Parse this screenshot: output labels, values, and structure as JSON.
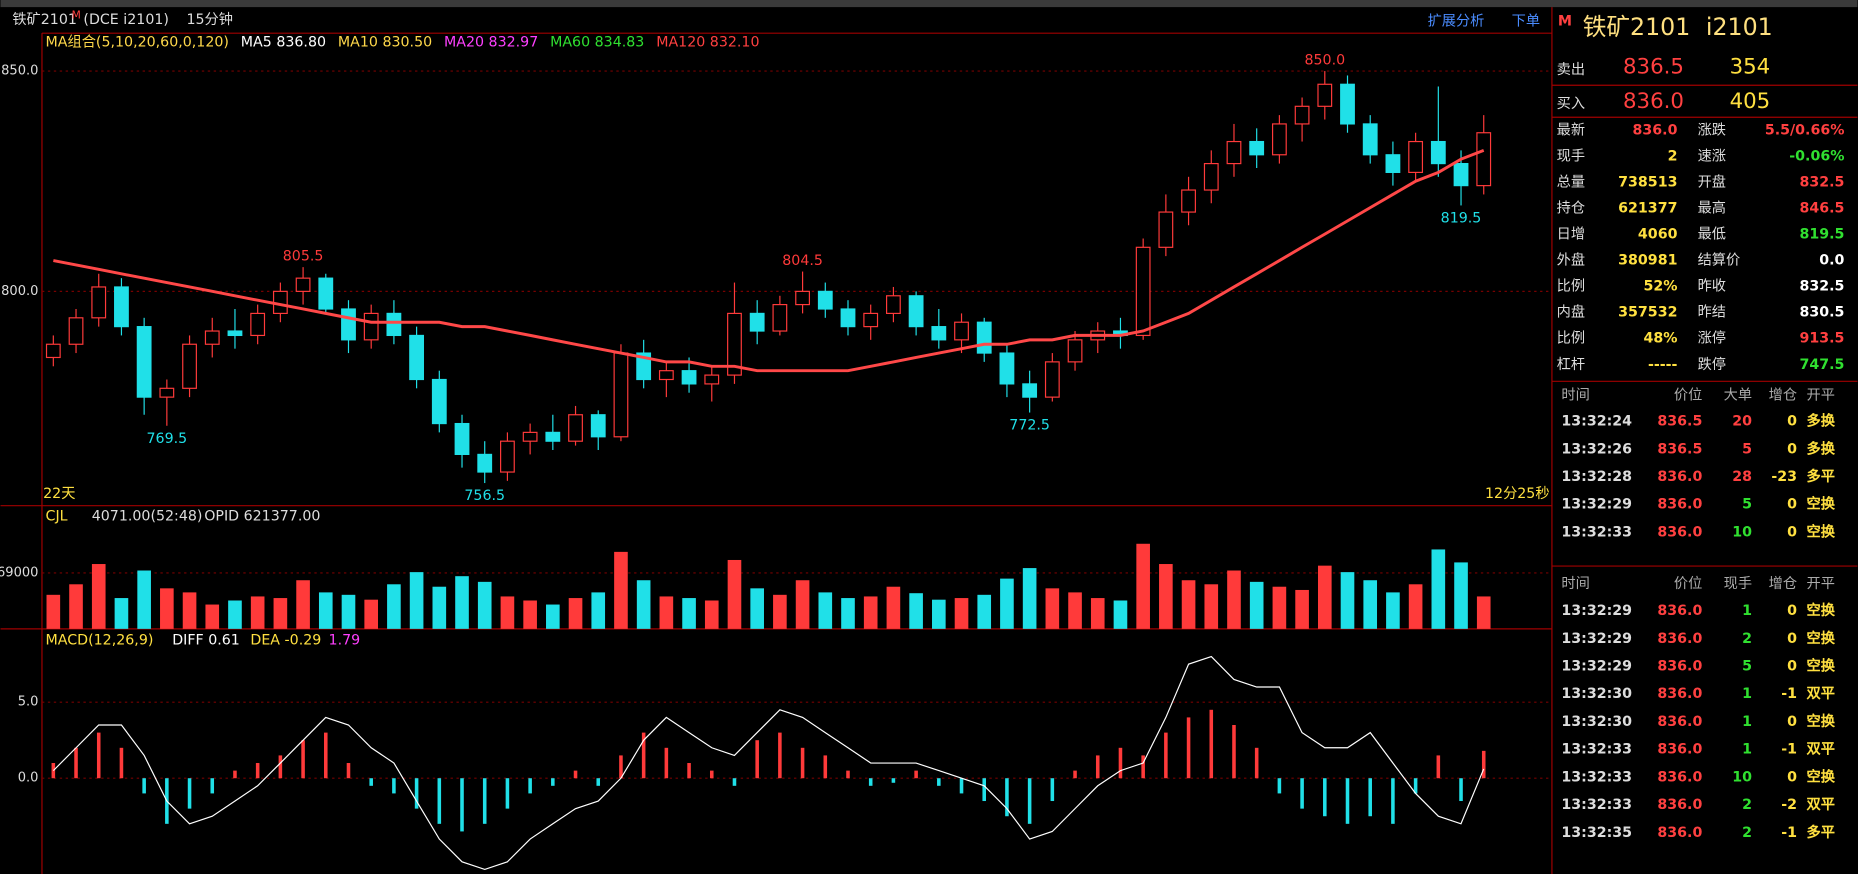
{
  "header": {
    "symbol": "铁矿2101",
    "flag": "M",
    "code": "(DCE i2101)",
    "period": "15分钟",
    "tools": [
      "扩展分析",
      "下单"
    ]
  },
  "chart_data": [
    {
      "type": "candlestick",
      "legend": [
        "MA组合(5,10,20,60,0,120)",
        "MA5 836.80",
        "MA10 830.50",
        "MA20 832.97",
        "MA60 834.83",
        "MA120 832.10"
      ],
      "legend_colors": [
        "#ffd84a",
        "#ffffff",
        "#ffd84a",
        "#ff40ff",
        "#30e030",
        "#ff4040"
      ],
      "ylim": [
        751.9,
        858.6
      ],
      "yticks": [
        {
          "value": 850,
          "label": "850.0"
        },
        {
          "value": 800,
          "label": "800.0"
        }
      ],
      "up_color": "#ff3a3a",
      "down_color": "#20e0e8",
      "candles": [
        [
          785,
          790,
          783,
          788
        ],
        [
          788,
          796,
          786,
          794
        ],
        [
          794,
          804,
          792,
          801
        ],
        [
          801,
          803,
          790,
          792
        ],
        [
          792,
          794,
          772,
          776
        ],
        [
          776,
          780,
          769.5,
          778
        ],
        [
          778,
          790,
          776,
          788
        ],
        [
          788,
          794,
          785,
          791
        ],
        [
          791,
          796,
          787,
          790
        ],
        [
          790,
          797,
          788,
          795
        ],
        [
          795,
          802,
          793,
          800
        ],
        [
          800,
          805.5,
          797,
          803
        ],
        [
          803,
          804,
          795,
          796
        ],
        [
          796,
          798,
          786,
          789
        ],
        [
          789,
          797,
          787,
          795
        ],
        [
          795,
          798,
          788,
          790
        ],
        [
          790,
          792,
          778,
          780
        ],
        [
          780,
          782,
          768,
          770
        ],
        [
          770,
          772,
          760,
          763
        ],
        [
          763,
          766,
          756.5,
          759
        ],
        [
          759,
          768,
          757,
          766
        ],
        [
          766,
          770,
          763,
          768
        ],
        [
          768,
          772,
          764,
          766
        ],
        [
          766,
          774,
          765,
          772
        ],
        [
          772,
          773,
          764,
          767
        ],
        [
          767,
          788,
          766,
          786
        ],
        [
          786,
          789,
          778,
          780
        ],
        [
          780,
          784,
          776,
          782
        ],
        [
          782,
          785,
          777,
          779
        ],
        [
          779,
          783,
          775,
          781
        ],
        [
          781,
          802,
          779,
          795
        ],
        [
          795,
          798,
          788,
          791
        ],
        [
          791,
          799,
          790,
          797
        ],
        [
          797,
          804.5,
          795,
          800
        ],
        [
          800,
          802,
          794,
          796
        ],
        [
          796,
          798,
          790,
          792
        ],
        [
          792,
          797,
          789,
          795
        ],
        [
          795,
          801,
          793,
          799
        ],
        [
          799,
          800,
          790,
          792
        ],
        [
          792,
          796,
          787,
          789
        ],
        [
          789,
          795,
          786,
          793
        ],
        [
          793,
          794,
          784,
          786
        ],
        [
          786,
          788,
          776,
          779
        ],
        [
          779,
          782,
          772.5,
          776
        ],
        [
          776,
          786,
          775,
          784
        ],
        [
          784,
          791,
          782,
          789
        ],
        [
          789,
          793,
          786,
          791
        ],
        [
          791,
          794,
          787,
          790
        ],
        [
          790,
          812,
          789,
          810
        ],
        [
          810,
          822,
          808,
          818
        ],
        [
          818,
          826,
          815,
          823
        ],
        [
          823,
          832,
          820,
          829
        ],
        [
          829,
          838,
          826,
          834
        ],
        [
          834,
          837,
          828,
          831
        ],
        [
          831,
          840,
          829,
          838
        ],
        [
          838,
          844,
          834,
          842
        ],
        [
          842,
          850,
          839,
          847
        ],
        [
          847,
          849,
          836,
          838
        ],
        [
          838,
          840,
          829,
          831
        ],
        [
          831,
          834,
          824,
          827
        ],
        [
          827,
          836,
          825,
          834
        ],
        [
          834,
          846.5,
          826,
          829
        ],
        [
          829,
          832,
          819.5,
          824
        ],
        [
          824,
          840,
          822,
          836
        ]
      ],
      "ma120": [
        807,
        806,
        805,
        804,
        803,
        802,
        801,
        800,
        799,
        798,
        797,
        796,
        795,
        794,
        793,
        793,
        793,
        793,
        792,
        792,
        791,
        790,
        789,
        788,
        787,
        786,
        785,
        784,
        784,
        783,
        783,
        782,
        782,
        782,
        782,
        782,
        783,
        784,
        785,
        786,
        787,
        788,
        788,
        789,
        789,
        790,
        790,
        790,
        791,
        793,
        795,
        798,
        801,
        804,
        807,
        810,
        813,
        816,
        819,
        822,
        825,
        827,
        830,
        832
      ],
      "ma120_color": "#ff4848",
      "annotations": [
        {
          "value": 850,
          "label": "850.0"
        },
        {
          "value": 805.5,
          "label": "805.5"
        },
        {
          "value": 804.5,
          "label": "804.5"
        },
        {
          "value": 769.5,
          "label": "769.5"
        },
        {
          "value": 756.5,
          "label": "756.5"
        },
        {
          "value": 772.5,
          "label": "772.5"
        },
        {
          "value": 819.5,
          "label": "819.5"
        }
      ],
      "footer_left": "22天",
      "footer_right": "12分25秒"
    },
    {
      "type": "bar",
      "title": "CJL",
      "stats": [
        "4071.00(52:48)",
        "OPID 621377.00"
      ],
      "ylim": [
        0,
        133000
      ],
      "yticks": [
        69000
      ],
      "values": [
        42000,
        55000,
        80000,
        38000,
        72000,
        50000,
        45000,
        30000,
        35000,
        40000,
        38000,
        60000,
        45000,
        42000,
        36000,
        55000,
        70000,
        52000,
        65000,
        58000,
        40000,
        35000,
        30000,
        38000,
        45000,
        95000,
        60000,
        40000,
        38000,
        35000,
        85000,
        50000,
        42000,
        60000,
        45000,
        38000,
        40000,
        52000,
        44000,
        36000,
        38000,
        42000,
        62000,
        75000,
        50000,
        45000,
        38000,
        35000,
        105000,
        80000,
        60000,
        55000,
        72000,
        58000,
        52000,
        48000,
        78000,
        70000,
        60000,
        45000,
        55000,
        98000,
        82000,
        40000
      ]
    },
    {
      "type": "macd",
      "title": "MACD(12,26,9)",
      "stats": [
        "DIFF 0.61",
        "DEA -0.29",
        "1.79"
      ],
      "ylim": [
        -6.3,
        8.5
      ],
      "yticks": [
        {
          "value": 5,
          "label": "5.0"
        },
        {
          "value": 0,
          "label": "0.0"
        }
      ],
      "values": [
        1,
        2,
        3,
        2,
        -1,
        -3,
        -2,
        -1,
        0.5,
        1,
        1.5,
        2.5,
        3,
        1,
        -0.5,
        -1,
        -2,
        -3,
        -3.5,
        -3,
        -2,
        -1,
        -0.5,
        0.5,
        -0.5,
        1.5,
        3,
        2,
        1,
        0.5,
        -0.5,
        2.5,
        3,
        2,
        1.5,
        0.5,
        -0.5,
        -0.3,
        0.5,
        -0.5,
        -1,
        -1.5,
        -2.5,
        -3,
        -1.5,
        0.5,
        1.5,
        2,
        1.5,
        3,
        4,
        4.5,
        3.5,
        2,
        -1,
        -2,
        -2.5,
        -3,
        -2.5,
        -3,
        -1,
        1.5,
        -1.5,
        1.8
      ],
      "diff": [
        0.5,
        2,
        3.5,
        3.5,
        1.5,
        -1.5,
        -3,
        -2.5,
        -1.5,
        -0.5,
        1,
        2.5,
        4,
        3.5,
        2,
        1,
        -1.5,
        -4,
        -5.5,
        -6,
        -5.5,
        -4,
        -3,
        -2,
        -1.5,
        0,
        2.5,
        4,
        3,
        2,
        1.5,
        3,
        4.5,
        4,
        3,
        2,
        1,
        1,
        1,
        0.5,
        0,
        -0.5,
        -2,
        -4,
        -3.5,
        -2,
        -0.5,
        0.5,
        1,
        4,
        7.5,
        8,
        6.5,
        6,
        6,
        3,
        2,
        2,
        3,
        1,
        -1,
        -2.5,
        -3,
        0.61
      ]
    }
  ],
  "quote": {
    "name": "铁矿2101",
    "code": "i2101",
    "flag": "M",
    "ask": [
      "卖出",
      "836.5",
      "354"
    ],
    "bid": [
      "买入",
      "836.0",
      "405"
    ],
    "fields": [
      [
        "最新",
        "836.0",
        "#ff4040"
      ],
      [
        "涨跌",
        "5.5/0.66%",
        "#ff4040"
      ],
      [
        "现手",
        "2",
        "#ffe040"
      ],
      [
        "速涨",
        "-0.06%",
        "#30e030"
      ],
      [
        "总量",
        "738513",
        "#ffe040"
      ],
      [
        "开盘",
        "832.5",
        "#ff4040"
      ],
      [
        "持仓",
        "621377",
        "#ffe040"
      ],
      [
        "最高",
        "846.5",
        "#ff4040"
      ],
      [
        "日增",
        "4060",
        "#ffe040"
      ],
      [
        "最低",
        "819.5",
        "#30e030"
      ],
      [
        "外盘",
        "380981",
        "#ffe040"
      ],
      [
        "结算价",
        "0.0",
        "#ffffff"
      ],
      [
        "比例",
        "52%",
        "#ffe040"
      ],
      [
        "昨收",
        "832.5",
        "#ffffff"
      ],
      [
        "内盘",
        "357532",
        "#ffe040"
      ],
      [
        "昨结",
        "830.5",
        "#ffffff"
      ],
      [
        "比例",
        "48%",
        "#ffe040"
      ],
      [
        "涨停",
        "913.5",
        "#ff4040"
      ],
      [
        "杠杆",
        "-----",
        "#ffe040"
      ],
      [
        "跌停",
        "747.5",
        "#30e030"
      ]
    ]
  },
  "ticks1": {
    "header": [
      "时间",
      "价位",
      "大单",
      "增仓",
      "开平"
    ],
    "rows": [
      [
        "13:32:24",
        "836.5",
        "20",
        "0",
        "多换"
      ],
      [
        "13:32:26",
        "836.5",
        "5",
        "0",
        "多换"
      ],
      [
        "13:32:28",
        "836.0",
        "28",
        "-23",
        "多平"
      ],
      [
        "13:32:29",
        "836.0",
        "5",
        "0",
        "空换"
      ],
      [
        "13:32:33",
        "836.0",
        "10",
        "0",
        "空换"
      ]
    ]
  },
  "ticks2": {
    "header": [
      "时间",
      "价位",
      "现手",
      "增仓",
      "开平"
    ],
    "rows": [
      [
        "13:32:29",
        "836.0",
        "1",
        "0",
        "空换"
      ],
      [
        "13:32:29",
        "836.0",
        "2",
        "0",
        "空换"
      ],
      [
        "13:32:29",
        "836.0",
        "5",
        "0",
        "空换"
      ],
      [
        "13:32:30",
        "836.0",
        "1",
        "-1",
        "双平"
      ],
      [
        "13:32:30",
        "836.0",
        "1",
        "0",
        "空换"
      ],
      [
        "13:32:33",
        "836.0",
        "1",
        "-1",
        "双平"
      ],
      [
        "13:32:33",
        "836.0",
        "10",
        "0",
        "空换"
      ],
      [
        "13:32:33",
        "836.0",
        "2",
        "-2",
        "双平"
      ],
      [
        "13:32:35",
        "836.0",
        "2",
        "-1",
        "多平"
      ]
    ]
  }
}
